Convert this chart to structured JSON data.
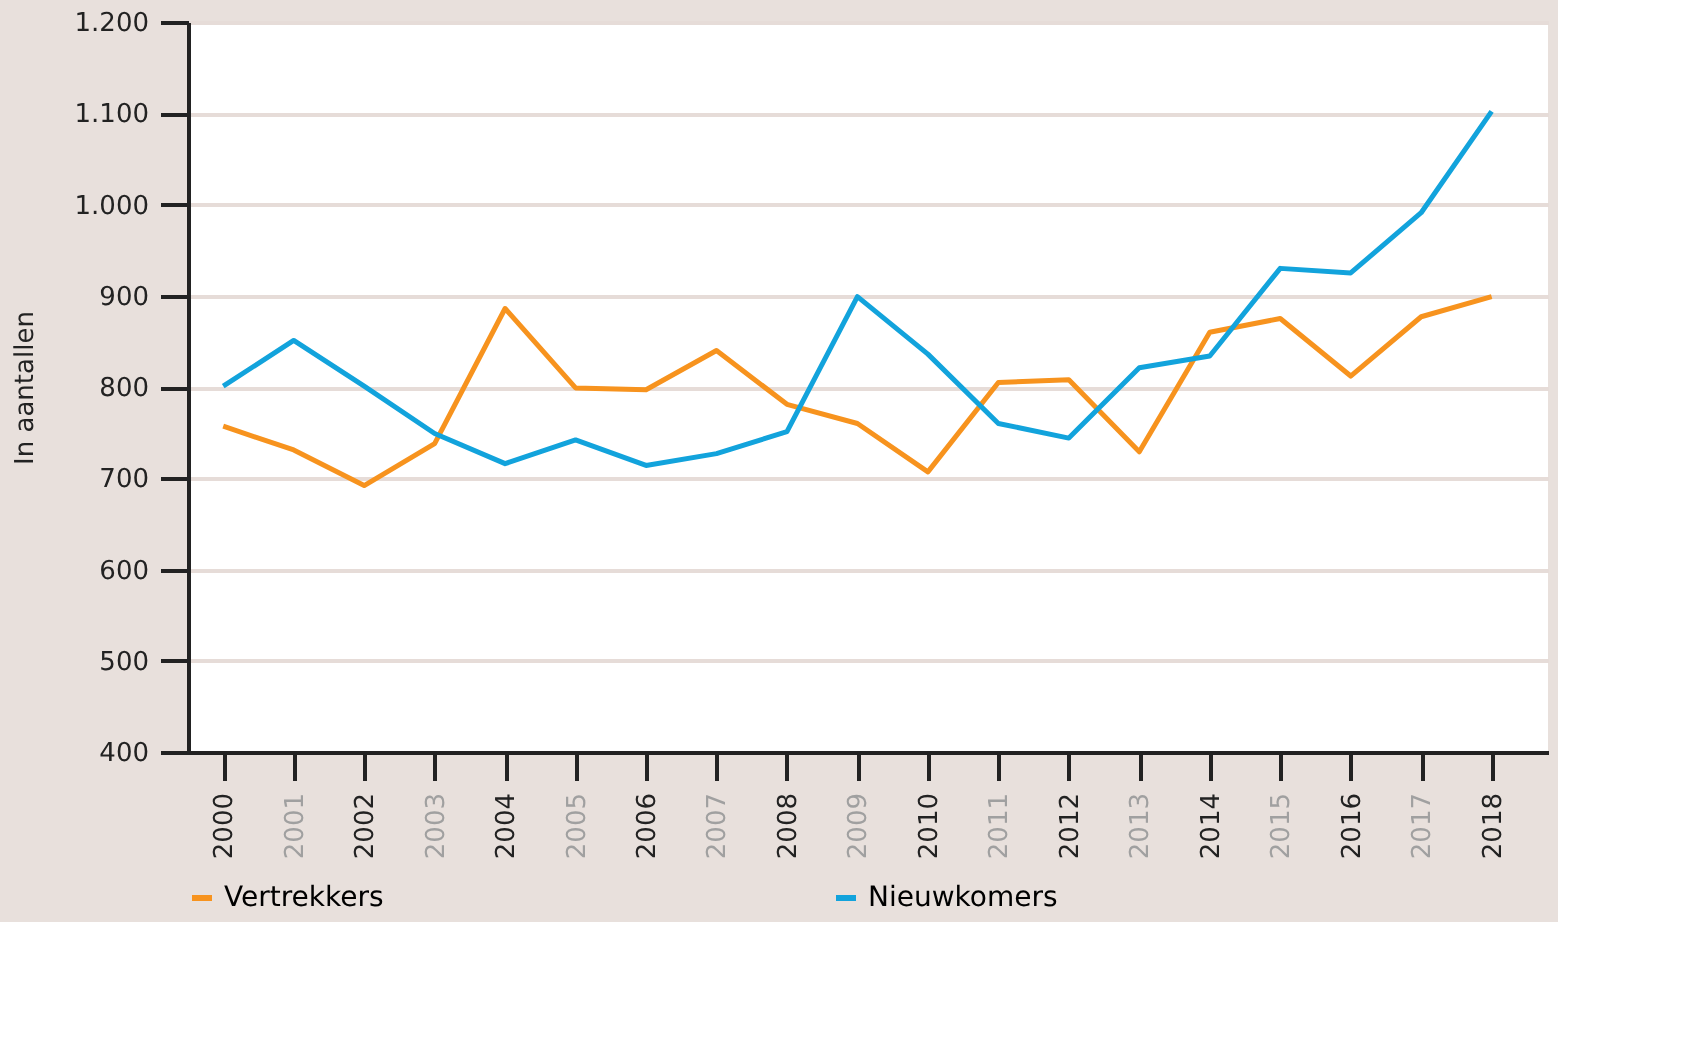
{
  "chart_data": {
    "type": "line",
    "ylabel": "In aantallen",
    "categories": [
      "2000",
      "2001",
      "2002",
      "2003",
      "2004",
      "2005",
      "2006",
      "2007",
      "2008",
      "2009",
      "2010",
      "2011",
      "2012",
      "2013",
      "2014",
      "2015",
      "2016",
      "2017",
      "2018"
    ],
    "series": [
      {
        "name": "Vertrekkers",
        "color": "#f7931e",
        "values": [
          757,
          731,
          692,
          738,
          886,
          799,
          797,
          840,
          781,
          760,
          707,
          805,
          808,
          729,
          860,
          875,
          812,
          877,
          899
        ]
      },
      {
        "name": "Nieuwkomers",
        "color": "#12a3dc",
        "values": [
          801,
          851,
          801,
          749,
          716,
          742,
          714,
          727,
          751,
          899,
          836,
          760,
          744,
          821,
          834,
          930,
          925,
          991,
          1102
        ]
      }
    ],
    "ylim": [
      400,
      1200
    ],
    "yticks": [
      400,
      500,
      600,
      700,
      800,
      900,
      {
        "value": 1000,
        "label": "1.000"
      },
      {
        "value": 1100,
        "label": "1.100"
      },
      {
        "value": 1200,
        "label": "1.200"
      }
    ],
    "grid": "y",
    "legend": "bottom",
    "marker": "none",
    "line_style": "solid"
  }
}
